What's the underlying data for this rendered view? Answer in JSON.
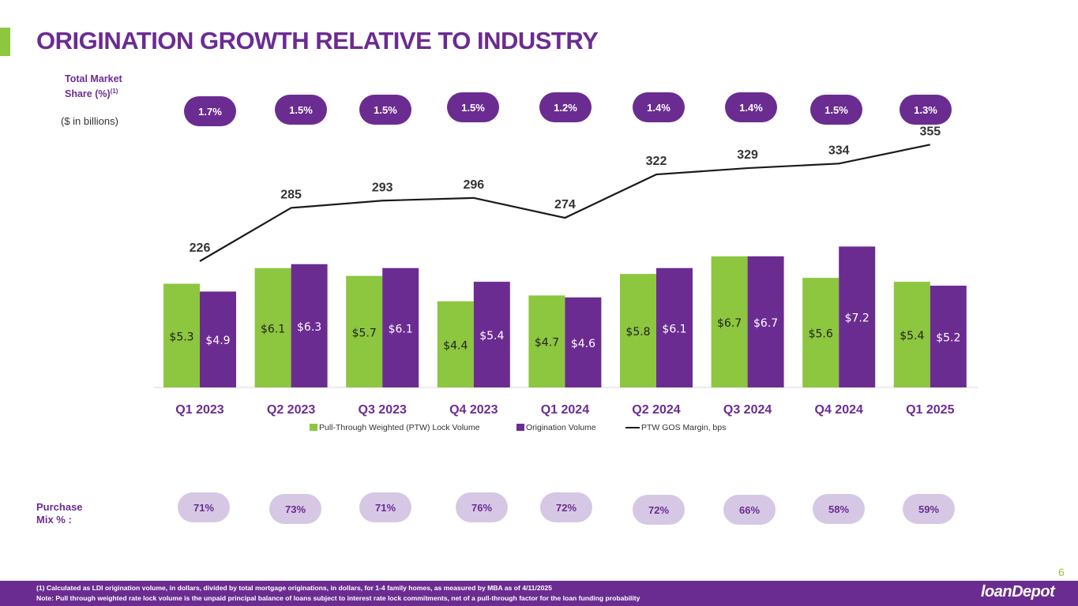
{
  "title": "ORIGINATION GROWTH RELATIVE TO INDUSTRY",
  "market_share_label": "Total Market Share (%)",
  "market_share_footnote_ref": "(1)",
  "units_note": "($ in billions)",
  "purchase_mix_label_line1": "Purchase",
  "purchase_mix_label_line2": "Mix % :",
  "market_share": [
    "1.7%",
    "1.5%",
    "1.5%",
    "1.5%",
    "1.2%",
    "1.4%",
    "1.4%",
    "1.5%",
    "1.3%"
  ],
  "purchase_mix": [
    "71%",
    "73%",
    "71%",
    "76%",
    "72%",
    "72%",
    "66%",
    "58%",
    "59%"
  ],
  "chart_data": {
    "type": "bar",
    "categories": [
      "Q1 2023",
      "Q2 2023",
      "Q3 2023",
      "Q4 2023",
      "Q1 2024",
      "Q2 2024",
      "Q3 2024",
      "Q4 2024",
      "Q1 2025"
    ],
    "series": [
      {
        "name": "Pull-Through Weighted (PTW) Lock Volume",
        "kind": "bar",
        "color": "#8DC63F",
        "values": [
          5.3,
          6.1,
          5.7,
          4.4,
          4.7,
          5.8,
          6.7,
          5.6,
          5.4
        ],
        "labels": [
          "$5.3",
          "$6.1",
          "$5.7",
          "$4.4",
          "$4.7",
          "$5.8",
          "$6.7",
          "$5.6",
          "$5.4"
        ]
      },
      {
        "name": "Origination Volume",
        "kind": "bar",
        "color": "#6B2C91",
        "values": [
          4.9,
          6.3,
          6.1,
          5.4,
          4.6,
          6.1,
          6.7,
          7.2,
          5.2
        ],
        "labels": [
          "$4.9",
          "$6.3",
          "$6.1",
          "$5.4",
          "$4.6",
          "$6.1",
          "$6.7",
          "$7.2",
          "$5.2"
        ]
      },
      {
        "name": "PTW GOS Margin, bps",
        "kind": "line",
        "color": "#1a1a1a",
        "values": [
          226,
          285,
          293,
          296,
          274,
          322,
          329,
          334,
          355
        ],
        "labels": [
          "226",
          "285",
          "293",
          "296",
          "274",
          "322",
          "329",
          "334",
          "355"
        ]
      }
    ],
    "legend": "bottom-center"
  },
  "page_number": "6",
  "footnote_1": "(1)  Calculated as LDI origination volume, in dollars, divided by total mortgage originations, in dollars, for 1-4 family homes, as measured by MBA as of 4/11/2025",
  "footnote_2": "Note: Pull through weighted rate lock volume is the unpaid principal balance of loans subject to interest rate lock commitments, net of a pull-through factor for the loan funding probability",
  "logo_text": "loanDepot",
  "colors": {
    "purple": "#6B2C91",
    "green": "#8DC63F",
    "light_purple": "#D6C8E4"
  }
}
